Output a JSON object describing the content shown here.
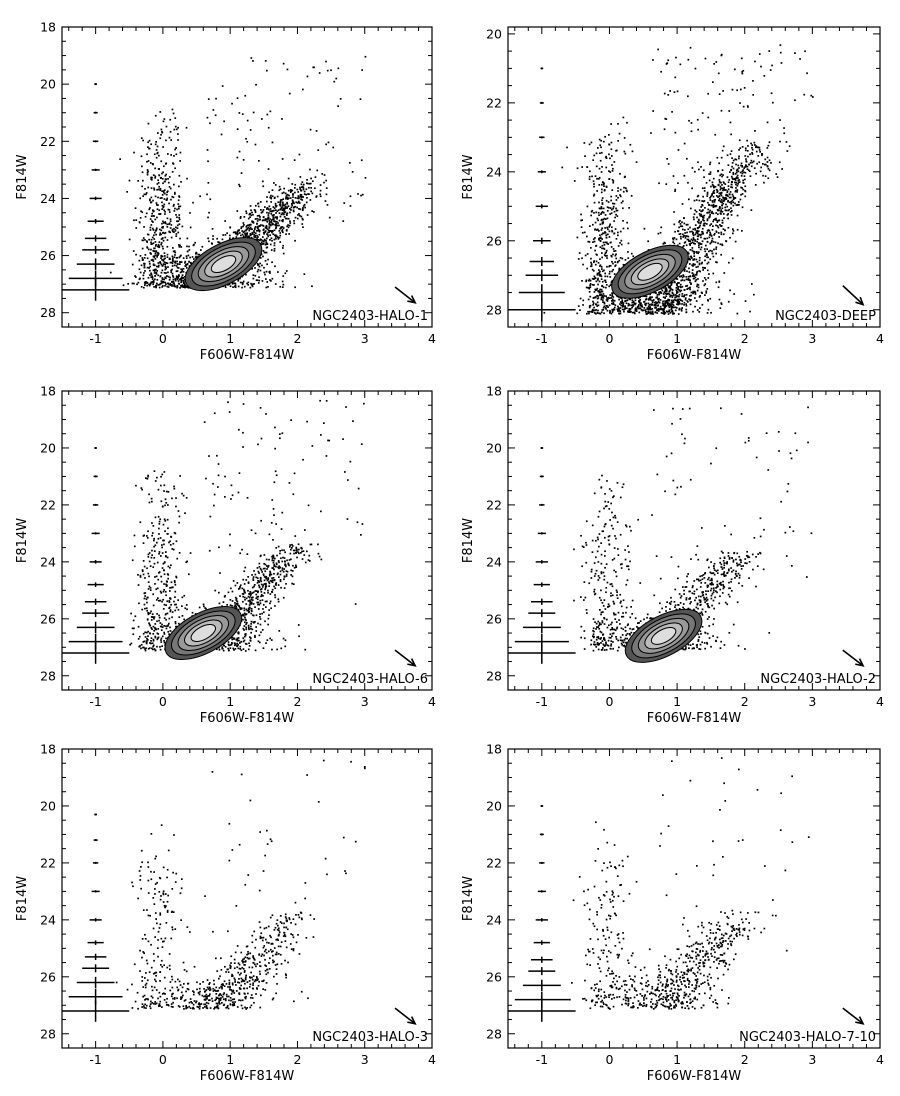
{
  "chart_data": [
    {
      "type": "scatter",
      "label": "NGC2403-HALO-1",
      "xlabel": "F606W-F814W",
      "ylabel": "F814W",
      "xlim": [
        -1.5,
        4
      ],
      "ylim": [
        28.5,
        18
      ],
      "y_inverted": true,
      "xticks": [
        "-1",
        "0",
        "1",
        "2",
        "3",
        "4"
      ],
      "yticks": [
        "18",
        "20",
        "22",
        "24",
        "26",
        "28"
      ],
      "density": "very_high",
      "contours": true,
      "contour_center": [
        0.9,
        26.3
      ],
      "tip_mag": 23.3,
      "brightest_mag": 18.8,
      "limit_mag": 27.1,
      "rgb_color_range": [
        0.0,
        2.2
      ],
      "error_bars": [
        {
          "mag": 20,
          "ex": 0.02,
          "ey": 0.02
        },
        {
          "mag": 21,
          "ex": 0.03,
          "ey": 0.02
        },
        {
          "mag": 22,
          "ex": 0.04,
          "ey": 0.03
        },
        {
          "mag": 23,
          "ex": 0.06,
          "ey": 0.04
        },
        {
          "mag": 24,
          "ex": 0.09,
          "ey": 0.06
        },
        {
          "mag": 24.8,
          "ex": 0.12,
          "ey": 0.08
        },
        {
          "mag": 25.4,
          "ex": 0.16,
          "ey": 0.11
        },
        {
          "mag": 25.8,
          "ex": 0.2,
          "ey": 0.14
        },
        {
          "mag": 26.3,
          "ex": 0.28,
          "ey": 0.2
        },
        {
          "mag": 26.8,
          "ex": 0.4,
          "ey": 0.28
        },
        {
          "mag": 27.2,
          "ex": 0.5,
          "ey": 0.38
        }
      ],
      "reddening_arrow": {
        "from": [
          3.45,
          27.1
        ],
        "to": [
          3.75,
          27.65
        ]
      }
    },
    {
      "type": "scatter",
      "label": "NGC2403-DEEP",
      "xlabel": "F606W-F814W",
      "ylabel": "F814W",
      "xlim": [
        -1.5,
        4
      ],
      "ylim": [
        28.5,
        19.8
      ],
      "y_inverted": true,
      "xticks": [
        "-1",
        "0",
        "1",
        "2",
        "3",
        "4"
      ],
      "yticks": [
        "20",
        "22",
        "24",
        "26",
        "28"
      ],
      "density": "very_high",
      "contours": true,
      "contour_center": [
        0.6,
        26.9
      ],
      "tip_mag": 23.0,
      "brightest_mag": 20.3,
      "limit_mag": 28.1,
      "rgb_color_range": [
        0.0,
        2.2
      ],
      "error_bars": [
        {
          "mag": 21,
          "ex": 0.02,
          "ey": 0.02
        },
        {
          "mag": 22,
          "ex": 0.03,
          "ey": 0.02
        },
        {
          "mag": 23,
          "ex": 0.04,
          "ey": 0.03
        },
        {
          "mag": 24,
          "ex": 0.06,
          "ey": 0.04
        },
        {
          "mag": 25,
          "ex": 0.09,
          "ey": 0.06
        },
        {
          "mag": 26,
          "ex": 0.13,
          "ey": 0.09
        },
        {
          "mag": 26.6,
          "ex": 0.18,
          "ey": 0.13
        },
        {
          "mag": 27.0,
          "ex": 0.24,
          "ey": 0.17
        },
        {
          "mag": 27.5,
          "ex": 0.34,
          "ey": 0.24
        },
        {
          "mag": 28.0,
          "ex": 0.5,
          "ey": 0.34
        }
      ],
      "reddening_arrow": {
        "from": [
          3.45,
          27.3
        ],
        "to": [
          3.75,
          27.85
        ]
      }
    },
    {
      "type": "scatter",
      "label": "NGC2403-HALO-6",
      "xlabel": "F606W-F814W",
      "ylabel": "F814W",
      "xlim": [
        -1.5,
        4
      ],
      "ylim": [
        28.5,
        18
      ],
      "y_inverted": true,
      "xticks": [
        "-1",
        "0",
        "1",
        "2",
        "3",
        "4"
      ],
      "yticks": [
        "18",
        "20",
        "22",
        "24",
        "26",
        "28"
      ],
      "density": "high",
      "contours": true,
      "contour_center": [
        0.6,
        26.5
      ],
      "tip_mag": 23.3,
      "brightest_mag": 18.3,
      "limit_mag": 27.1,
      "rgb_color_range": [
        0.0,
        2.0
      ],
      "error_bars": [
        {
          "mag": 20,
          "ex": 0.02,
          "ey": 0.02
        },
        {
          "mag": 21,
          "ex": 0.03,
          "ey": 0.02
        },
        {
          "mag": 22,
          "ex": 0.04,
          "ey": 0.03
        },
        {
          "mag": 23,
          "ex": 0.06,
          "ey": 0.04
        },
        {
          "mag": 24,
          "ex": 0.09,
          "ey": 0.06
        },
        {
          "mag": 24.8,
          "ex": 0.12,
          "ey": 0.08
        },
        {
          "mag": 25.4,
          "ex": 0.16,
          "ey": 0.11
        },
        {
          "mag": 25.8,
          "ex": 0.2,
          "ey": 0.14
        },
        {
          "mag": 26.3,
          "ex": 0.28,
          "ey": 0.2
        },
        {
          "mag": 26.8,
          "ex": 0.4,
          "ey": 0.28
        },
        {
          "mag": 27.2,
          "ex": 0.5,
          "ey": 0.38
        }
      ],
      "reddening_arrow": {
        "from": [
          3.45,
          27.1
        ],
        "to": [
          3.75,
          27.65
        ]
      }
    },
    {
      "type": "scatter",
      "label": "NGC2403-HALO-2",
      "xlabel": "F606W-F814W",
      "ylabel": "F814W",
      "xlim": [
        -1.5,
        4
      ],
      "ylim": [
        28.5,
        18
      ],
      "y_inverted": true,
      "xticks": [
        "-1",
        "0",
        "1",
        "2",
        "3",
        "4"
      ],
      "yticks": [
        "18",
        "20",
        "22",
        "24",
        "26",
        "28"
      ],
      "density": "medium",
      "contours": true,
      "contour_center": [
        0.8,
        26.6
      ],
      "tip_mag": 23.5,
      "brightest_mag": 18.5,
      "limit_mag": 27.1,
      "rgb_color_range": [
        0.0,
        2.0
      ],
      "error_bars": [
        {
          "mag": 20,
          "ex": 0.02,
          "ey": 0.02
        },
        {
          "mag": 21,
          "ex": 0.03,
          "ey": 0.02
        },
        {
          "mag": 22,
          "ex": 0.04,
          "ey": 0.03
        },
        {
          "mag": 23,
          "ex": 0.06,
          "ey": 0.04
        },
        {
          "mag": 24,
          "ex": 0.09,
          "ey": 0.06
        },
        {
          "mag": 24.8,
          "ex": 0.12,
          "ey": 0.08
        },
        {
          "mag": 25.4,
          "ex": 0.16,
          "ey": 0.11
        },
        {
          "mag": 25.8,
          "ex": 0.2,
          "ey": 0.14
        },
        {
          "mag": 26.3,
          "ex": 0.28,
          "ey": 0.2
        },
        {
          "mag": 26.8,
          "ex": 0.4,
          "ey": 0.28
        },
        {
          "mag": 27.2,
          "ex": 0.5,
          "ey": 0.38
        }
      ],
      "reddening_arrow": {
        "from": [
          3.45,
          27.1
        ],
        "to": [
          3.75,
          27.65
        ]
      }
    },
    {
      "type": "scatter",
      "label": "NGC2403-HALO-3",
      "xlabel": "F606W-F814W",
      "ylabel": "F814W",
      "xlim": [
        -1.5,
        4
      ],
      "ylim": [
        28.5,
        18
      ],
      "y_inverted": true,
      "xticks": [
        "-1",
        "0",
        "1",
        "2",
        "3",
        "4"
      ],
      "yticks": [
        "18",
        "20",
        "22",
        "24",
        "26",
        "28"
      ],
      "density": "low",
      "contours": false,
      "tip_mag": 23.6,
      "brightest_mag": 18.3,
      "limit_mag": 27.1,
      "rgb_color_range": [
        0.2,
        2.0
      ],
      "error_bars": [
        {
          "mag": 20.3,
          "ex": 0.02,
          "ey": 0.02
        },
        {
          "mag": 21.2,
          "ex": 0.03,
          "ey": 0.02
        },
        {
          "mag": 22,
          "ex": 0.04,
          "ey": 0.03
        },
        {
          "mag": 23,
          "ex": 0.06,
          "ey": 0.04
        },
        {
          "mag": 24,
          "ex": 0.09,
          "ey": 0.06
        },
        {
          "mag": 24.8,
          "ex": 0.12,
          "ey": 0.08
        },
        {
          "mag": 25.3,
          "ex": 0.16,
          "ey": 0.11
        },
        {
          "mag": 25.7,
          "ex": 0.2,
          "ey": 0.14
        },
        {
          "mag": 26.2,
          "ex": 0.28,
          "ey": 0.2
        },
        {
          "mag": 26.7,
          "ex": 0.4,
          "ey": 0.28
        },
        {
          "mag": 27.2,
          "ex": 0.5,
          "ey": 0.38
        }
      ],
      "reddening_arrow": {
        "from": [
          3.45,
          27.1
        ],
        "to": [
          3.75,
          27.65
        ]
      }
    },
    {
      "type": "scatter",
      "label": "NGC2403-HALO-7-10",
      "xlabel": "F606W-F814W",
      "ylabel": "F814W",
      "xlim": [
        -1.5,
        4
      ],
      "ylim": [
        28.5,
        18
      ],
      "y_inverted": true,
      "xticks": [
        "-1",
        "0",
        "1",
        "2",
        "3",
        "4"
      ],
      "yticks": [
        "18",
        "20",
        "22",
        "24",
        "26",
        "28"
      ],
      "density": "low",
      "contours": false,
      "tip_mag": 23.6,
      "brightest_mag": 18.2,
      "limit_mag": 27.1,
      "rgb_color_range": [
        0.2,
        2.0
      ],
      "error_bars": [
        {
          "mag": 20,
          "ex": 0.02,
          "ey": 0.02
        },
        {
          "mag": 21,
          "ex": 0.03,
          "ey": 0.02
        },
        {
          "mag": 22,
          "ex": 0.04,
          "ey": 0.03
        },
        {
          "mag": 23,
          "ex": 0.06,
          "ey": 0.04
        },
        {
          "mag": 24,
          "ex": 0.09,
          "ey": 0.06
        },
        {
          "mag": 24.8,
          "ex": 0.12,
          "ey": 0.08
        },
        {
          "mag": 25.4,
          "ex": 0.16,
          "ey": 0.11
        },
        {
          "mag": 25.8,
          "ex": 0.2,
          "ey": 0.14
        },
        {
          "mag": 26.3,
          "ex": 0.28,
          "ey": 0.2
        },
        {
          "mag": 26.8,
          "ex": 0.4,
          "ey": 0.28
        },
        {
          "mag": 27.2,
          "ex": 0.5,
          "ey": 0.38
        }
      ],
      "reddening_arrow": {
        "from": [
          3.45,
          27.1
        ],
        "to": [
          3.75,
          27.65
        ]
      }
    }
  ]
}
